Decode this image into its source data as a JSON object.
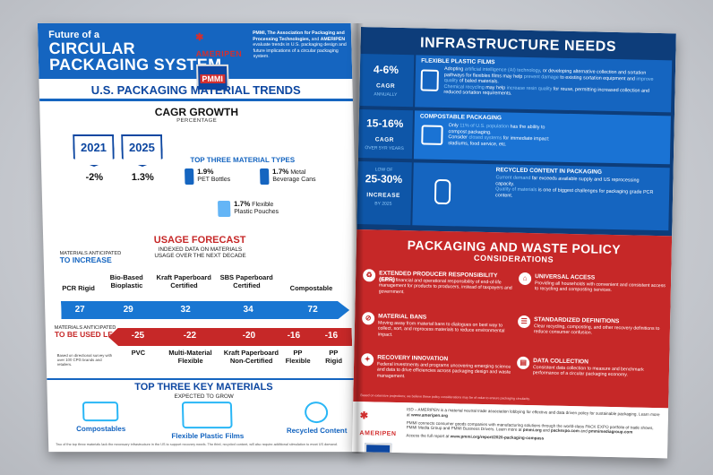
{
  "left_page": {
    "header": {
      "title_small": "Future of a",
      "title_line1": "CIRCULAR",
      "title_line2": "PACKAGING SYSTEM",
      "logo_text": "AMERIPEN",
      "pmmi_text": "PMMI",
      "intro_bold1": "PMMI, The Association for Packaging and Processing Technologies,",
      "intro_and": " and ",
      "intro_bold2": "AMERIPEN",
      "intro_rest": " evaluate trends in U.S. packaging design and future implications of a circular packaging system."
    },
    "trends": {
      "title": "U.S. PACKAGING MATERIAL TRENDS",
      "cagr_title": "CAGR GROWTH",
      "cagr_sub": "PERCENTAGE",
      "years": [
        {
          "year": "2021",
          "value": "-2%"
        },
        {
          "year": "2025",
          "value": "1.3%"
        }
      ],
      "top_three_title": "TOP THREE MATERIAL TYPES",
      "materials": [
        {
          "pct": "1.9%",
          "name": "PET Bottles"
        },
        {
          "pct": "1.7%",
          "name_line1": "Metal",
          "name_line2": "Beverage Cans"
        },
        {
          "pct": "1.7%",
          "name_line1": "Flexible",
          "name_line2": "Plastic Pouches"
        }
      ]
    },
    "forecast": {
      "title": "USAGE FORECAST",
      "sub_line1": "INDEXED DATA ON MATERIALS",
      "sub_line2": "USAGE OVER THE NEXT DECADE",
      "increase_small": "MATERIALS ANTICIPATED",
      "increase_big": "TO INCREASE",
      "increase_items": [
        {
          "l1": "PCR Rigid",
          "l2": "",
          "value": "27"
        },
        {
          "l1": "Bio-Based",
          "l2": "Bioplastic",
          "value": "29"
        },
        {
          "l1": "Kraft Paperboard",
          "l2": "Certified",
          "value": "32"
        },
        {
          "l1": "SBS Paperboard",
          "l2": "Certified",
          "value": "34"
        },
        {
          "l1": "Compostable",
          "l2": "",
          "value": "72"
        }
      ],
      "less_small": "MATERIALS ANTICIPATED",
      "less_big": "TO BE USED LESS",
      "less_items": [
        {
          "l1": "PVC",
          "l2": "",
          "value": "-25"
        },
        {
          "l1": "Multi-Material",
          "l2": "Flexible",
          "value": "-22"
        },
        {
          "l1": "Kraft Paperboard",
          "l2": "Non-Certified",
          "value": "-20"
        },
        {
          "l1": "PP",
          "l2": "Flexible",
          "value": "-16"
        },
        {
          "l1": "PP",
          "l2": "Rigid",
          "value": "-16"
        }
      ],
      "note": "Based on directional survey with over 100 CPG brands and retailers."
    },
    "key_materials": {
      "title": "TOP THREE KEY MATERIALS",
      "sub": "EXPECTED TO GROW",
      "items": [
        "Compostables",
        "Flexible Plastic Films",
        "Recycled Content"
      ]
    },
    "footnote": "Two of the top three materials lack the necessary infrastructure in the US to support recovery needs. The third, recycled content, will also require additional stimulation to meet US demand."
  },
  "right_page": {
    "infra": {
      "title": "INFRASTRUCTURE NEEDS",
      "stats": [
        {
          "big": "4-6%",
          "mid": "CAGR",
          "small": "ANNUALLY"
        },
        {
          "big": "15-16%",
          "mid": "CAGR",
          "small": "OVER 5YR YEARS"
        },
        {
          "pre": "LOW OF",
          "big": "25-30%",
          "mid": "INCREASE",
          "small": "BY 2025"
        }
      ],
      "cards": [
        {
          "head": "FLEXIBLE PLASTIC FILMS",
          "p1_a": "Adopting ",
          "p1_hl": "artificial intelligence (AI) technology",
          "p1_b": ", or developing alternative collection and sortation pathways for flexibles films may help ",
          "p1_hl2": "prevent damage",
          "p1_c": " to existing sortation equipment and ",
          "p1_hl3": "improve quality",
          "p1_d": " of baled materials.",
          "p2_hl": "Chemical recycling",
          "p2_a": " may help ",
          "p2_hl2": "increase resin quality",
          "p2_b": " for reuse, permitting increased collection and reduced sortation requirements."
        },
        {
          "head": "COMPOSTABLE PACKAGING",
          "p1_a": "Only ",
          "p1_hl": "11% of U.S. population",
          "p1_b": " has the ability to compost packaging.",
          "p2_a": "Consider ",
          "p2_hl": "closed systems",
          "p2_b": " for immediate impact: stadiums, food service, etc."
        },
        {
          "head": "RECYCLED CONTENT IN PACKAGING",
          "p1_hl": "Current demand",
          "p1_a": " far exceeds available supply and US reprocessing capacity.",
          "p2_hl": "Quality of materials",
          "p2_a": " is one of biggest challenges for packaging grade PCR content."
        }
      ]
    },
    "policy": {
      "title": "PACKAGING AND WASTE POLICY",
      "sub": "CONSIDERATIONS",
      "items": [
        {
          "head": "EXTENDED PRODUCER RESPONSIBILITY (EPR)",
          "text": "Shifting financial and operational responsibility of end-of-life management for products to producers, instead of taxpayers and government."
        },
        {
          "head": "UNIVERSAL ACCESS",
          "text": "Providing all households with convenient and consistent access to recycling and composting services."
        },
        {
          "head": "MATERIAL BANS",
          "text": "Moving away from material bans to dialogues on best way to collect, sort, and reprocess materials to reduce environmental impact."
        },
        {
          "head": "STANDARDIZED DEFINITIONS",
          "text": "Clear recycling, composting, and other recovery definitions to reduce consumer confusion."
        },
        {
          "head": "RECOVERY INNOVATION",
          "text": "Federal investments and programs uncovering emerging science and data to drive efficiencies across packaging design and waste management."
        },
        {
          "head": "DATA COLLECTION",
          "text": "Consistent data collection to measure and benchmark performance of a circular packaging economy."
        }
      ],
      "footnote": "Based on extensive projections; we believe these policy considerations may be of value to ensure packaging circularity."
    },
    "bottom": {
      "logo_text": "AMERIPEN",
      "p1_a": "ISD – AMERIPEN is a material neutral trade association lobbying for effective and data driven policy for sustainable packaging. Learn more at ",
      "p1_link": "www.ameripen.org",
      "p2_a": "PMMI connects consumer goods companies with manufacturing solutions through the world-class PACK EXPO portfolio of trade shows, PMMI Media Group and PMMI Business Drivers. Learn more at ",
      "p2_link": "pmmi.org",
      "p2_b": " and ",
      "p2_link2": "packexpo.com",
      "p2_c": " and ",
      "p2_link3": "pmmimediagroup.com",
      "p3_a": "Access the full report at ",
      "p3_link": "www.pmmi.org/report/2020-packaging-compass"
    }
  }
}
